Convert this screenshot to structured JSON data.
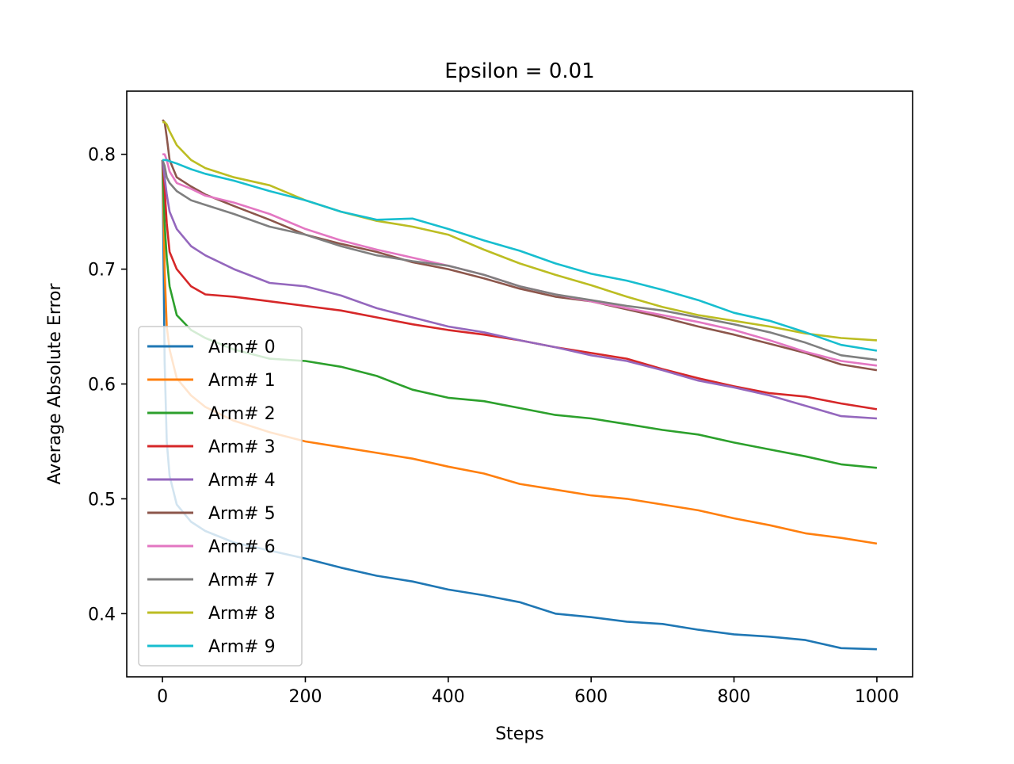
{
  "chart_data": {
    "type": "line",
    "title": "Epsilon = 0.01",
    "xlabel": "Steps",
    "ylabel": "Average Absolute Error",
    "xlim": [
      -50,
      1050
    ],
    "ylim": [
      0.345,
      0.855
    ],
    "xticks": [
      0,
      200,
      400,
      600,
      800,
      1000
    ],
    "xtick_labels": [
      "0",
      "200",
      "400",
      "600",
      "800",
      "1000"
    ],
    "yticks": [
      0.4,
      0.5,
      0.6,
      0.7,
      0.8
    ],
    "ytick_labels": [
      "0.4",
      "0.5",
      "0.6",
      "0.7",
      "0.8"
    ],
    "grid": false,
    "legend": "lower-left",
    "series": [
      {
        "name": "Arm# 0",
        "color": "#1f77b4",
        "x": [
          0,
          3,
          6,
          10,
          20,
          40,
          60,
          100,
          150,
          200,
          250,
          300,
          350,
          400,
          450,
          500,
          550,
          600,
          650,
          700,
          750,
          800,
          850,
          900,
          950,
          1000
        ],
        "y": [
          0.795,
          0.62,
          0.55,
          0.52,
          0.495,
          0.48,
          0.472,
          0.462,
          0.455,
          0.448,
          0.44,
          0.433,
          0.428,
          0.421,
          0.416,
          0.41,
          0.4,
          0.397,
          0.393,
          0.391,
          0.386,
          0.382,
          0.38,
          0.377,
          0.37,
          0.369
        ]
      },
      {
        "name": "Arm# 1",
        "color": "#ff7f0e",
        "x": [
          0,
          3,
          6,
          10,
          20,
          40,
          60,
          100,
          150,
          200,
          250,
          300,
          350,
          400,
          450,
          500,
          550,
          600,
          650,
          700,
          750,
          800,
          850,
          900,
          950,
          1000
        ],
        "y": [
          0.795,
          0.7,
          0.65,
          0.63,
          0.605,
          0.59,
          0.58,
          0.568,
          0.558,
          0.55,
          0.545,
          0.54,
          0.535,
          0.528,
          0.522,
          0.513,
          0.508,
          0.503,
          0.5,
          0.495,
          0.49,
          0.483,
          0.477,
          0.47,
          0.466,
          0.461
        ]
      },
      {
        "name": "Arm# 2",
        "color": "#2ca02c",
        "x": [
          0,
          3,
          6,
          10,
          20,
          40,
          60,
          100,
          150,
          200,
          250,
          300,
          350,
          400,
          450,
          500,
          550,
          600,
          650,
          700,
          750,
          800,
          850,
          900,
          950,
          1000
        ],
        "y": [
          0.795,
          0.74,
          0.71,
          0.685,
          0.66,
          0.647,
          0.64,
          0.63,
          0.622,
          0.62,
          0.615,
          0.607,
          0.595,
          0.588,
          0.585,
          0.579,
          0.573,
          0.57,
          0.565,
          0.56,
          0.556,
          0.549,
          0.543,
          0.537,
          0.53,
          0.527
        ]
      },
      {
        "name": "Arm# 3",
        "color": "#d62728",
        "x": [
          0,
          3,
          6,
          10,
          20,
          40,
          60,
          100,
          150,
          200,
          250,
          300,
          350,
          400,
          450,
          500,
          550,
          600,
          650,
          700,
          750,
          800,
          850,
          900,
          950,
          1000
        ],
        "y": [
          0.795,
          0.77,
          0.74,
          0.715,
          0.7,
          0.685,
          0.678,
          0.676,
          0.672,
          0.668,
          0.664,
          0.658,
          0.652,
          0.647,
          0.643,
          0.638,
          0.632,
          0.627,
          0.622,
          0.613,
          0.605,
          0.598,
          0.592,
          0.589,
          0.583,
          0.578
        ]
      },
      {
        "name": "Arm# 4",
        "color": "#9467bd",
        "x": [
          0,
          3,
          6,
          10,
          20,
          40,
          60,
          100,
          150,
          200,
          250,
          300,
          350,
          400,
          450,
          500,
          550,
          600,
          650,
          700,
          750,
          800,
          850,
          900,
          950,
          1000
        ],
        "y": [
          0.795,
          0.78,
          0.765,
          0.75,
          0.735,
          0.72,
          0.712,
          0.7,
          0.688,
          0.685,
          0.677,
          0.666,
          0.658,
          0.65,
          0.645,
          0.638,
          0.632,
          0.625,
          0.62,
          0.612,
          0.603,
          0.597,
          0.59,
          0.581,
          0.572,
          0.57
        ]
      },
      {
        "name": "Arm# 5",
        "color": "#8c564b",
        "x": [
          0,
          3,
          6,
          10,
          20,
          40,
          60,
          100,
          150,
          200,
          250,
          300,
          350,
          400,
          450,
          500,
          550,
          600,
          650,
          700,
          750,
          800,
          850,
          900,
          950,
          1000
        ],
        "y": [
          0.83,
          0.828,
          0.815,
          0.795,
          0.78,
          0.772,
          0.765,
          0.755,
          0.743,
          0.73,
          0.722,
          0.715,
          0.706,
          0.7,
          0.692,
          0.683,
          0.676,
          0.672,
          0.665,
          0.658,
          0.65,
          0.643,
          0.635,
          0.627,
          0.617,
          0.612
        ]
      },
      {
        "name": "Arm# 6",
        "color": "#e377c2",
        "x": [
          0,
          3,
          6,
          10,
          20,
          40,
          60,
          100,
          150,
          200,
          250,
          300,
          350,
          400,
          450,
          500,
          550,
          600,
          650,
          700,
          750,
          800,
          850,
          900,
          950,
          1000
        ],
        "y": [
          0.8,
          0.8,
          0.795,
          0.785,
          0.775,
          0.77,
          0.764,
          0.758,
          0.748,
          0.735,
          0.725,
          0.717,
          0.71,
          0.703,
          0.695,
          0.685,
          0.678,
          0.672,
          0.666,
          0.66,
          0.654,
          0.647,
          0.638,
          0.628,
          0.62,
          0.616
        ]
      },
      {
        "name": "Arm# 7",
        "color": "#7f7f7f",
        "x": [
          0,
          3,
          6,
          10,
          20,
          40,
          60,
          100,
          150,
          200,
          250,
          300,
          350,
          400,
          450,
          500,
          550,
          600,
          650,
          700,
          750,
          800,
          850,
          900,
          950,
          1000
        ],
        "y": [
          0.795,
          0.79,
          0.78,
          0.775,
          0.768,
          0.76,
          0.756,
          0.748,
          0.737,
          0.73,
          0.72,
          0.712,
          0.707,
          0.703,
          0.695,
          0.685,
          0.678,
          0.673,
          0.668,
          0.664,
          0.658,
          0.652,
          0.645,
          0.636,
          0.625,
          0.621
        ]
      },
      {
        "name": "Arm# 8",
        "color": "#bcbd22",
        "x": [
          0,
          3,
          6,
          10,
          20,
          40,
          60,
          100,
          150,
          200,
          250,
          300,
          350,
          400,
          450,
          500,
          550,
          600,
          650,
          700,
          750,
          800,
          850,
          900,
          950,
          1000
        ],
        "y": [
          0.828,
          0.828,
          0.826,
          0.82,
          0.808,
          0.795,
          0.788,
          0.78,
          0.773,
          0.76,
          0.75,
          0.742,
          0.737,
          0.73,
          0.717,
          0.705,
          0.695,
          0.686,
          0.676,
          0.667,
          0.66,
          0.655,
          0.65,
          0.644,
          0.64,
          0.638
        ]
      },
      {
        "name": "Arm# 9",
        "color": "#17becf",
        "x": [
          0,
          3,
          6,
          10,
          20,
          40,
          60,
          100,
          150,
          200,
          250,
          300,
          350,
          400,
          450,
          500,
          550,
          600,
          650,
          700,
          750,
          800,
          850,
          900,
          950,
          1000
        ],
        "y": [
          0.795,
          0.795,
          0.795,
          0.794,
          0.792,
          0.787,
          0.783,
          0.777,
          0.768,
          0.76,
          0.75,
          0.743,
          0.744,
          0.735,
          0.725,
          0.716,
          0.705,
          0.696,
          0.69,
          0.682,
          0.673,
          0.662,
          0.655,
          0.645,
          0.634,
          0.629
        ]
      }
    ]
  }
}
